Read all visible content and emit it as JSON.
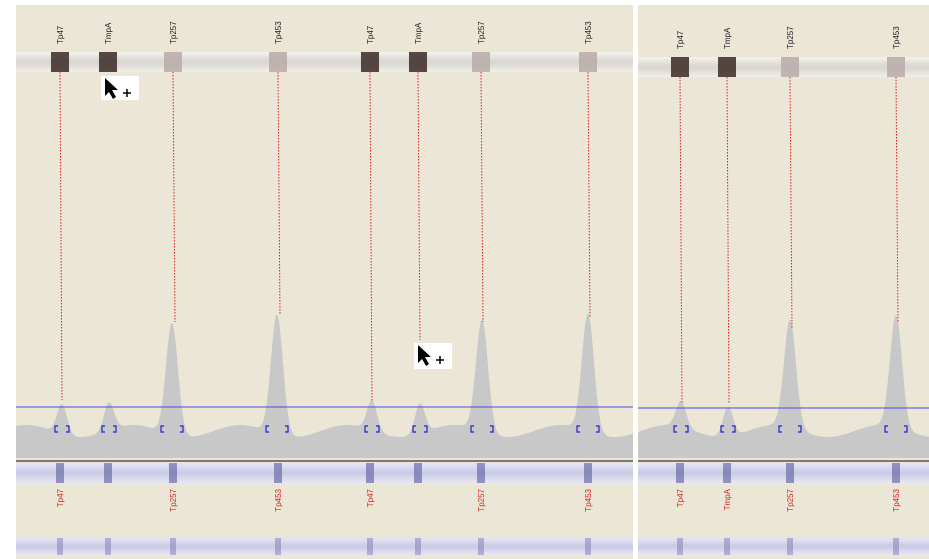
{
  "panels": [
    {
      "top_labels": [
        "Tp47",
        "TmpA",
        "Tp257",
        "Tp453",
        "Tp47",
        "TmpA",
        "Tp257",
        "Tp453"
      ],
      "bottom_labels": [
        "Tp47",
        "Tp257",
        "Tp453",
        "Tp47",
        "Tp257",
        "Tp453"
      ]
    },
    {
      "top_labels": [
        "Tp47",
        "TmpA",
        "Tp257",
        "Tp453"
      ],
      "bottom_labels": [
        "Tp47",
        "TmpA",
        "Tp257",
        "Tp453"
      ]
    }
  ]
}
